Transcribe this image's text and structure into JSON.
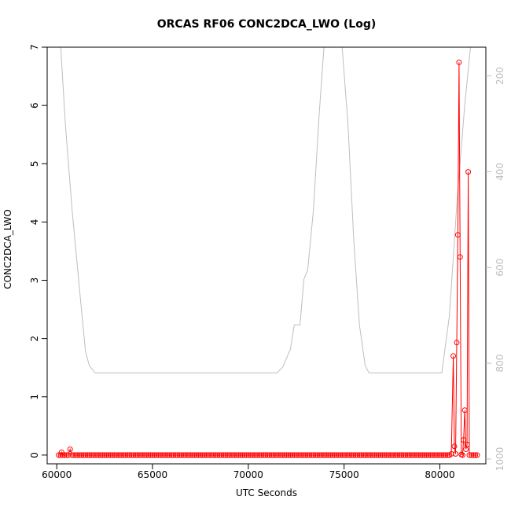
{
  "chart_data": {
    "type": "line",
    "title": "ORCAS RF06 CONC2DCA_LWO (Log)",
    "xlabel": "UTC Seconds",
    "ylabel": "CONC2DCA_LWO",
    "xlim": [
      59500,
      82400
    ],
    "ylim": [
      -0.15,
      7.0
    ],
    "x_ticks": [
      60000,
      65000,
      70000,
      75000,
      80000
    ],
    "y_ticks": [
      0,
      1,
      2,
      3,
      4,
      5,
      6,
      7
    ],
    "y2_ticks": [
      200,
      400,
      600,
      800,
      1000
    ],
    "y2lim": [
      140,
      1010
    ],
    "y2_reversed": true,
    "grid": false,
    "colors": {
      "series": "#ff0000",
      "secondary": "#bebebe"
    },
    "series": [
      {
        "axis": "left",
        "style": "line+points",
        "baseline_range": [
          60100,
          80500
        ],
        "baseline_step": 100,
        "baseline_value": 0.0,
        "points": [
          [
            60250,
            0.05
          ],
          [
            60700,
            0.1
          ],
          [
            80600,
            0.02
          ],
          [
            80700,
            1.7
          ],
          [
            80760,
            0.15
          ],
          [
            80820,
            0.02
          ],
          [
            80880,
            1.93
          ],
          [
            80940,
            3.78
          ],
          [
            81000,
            6.74
          ],
          [
            81060,
            3.4
          ],
          [
            81120,
            0.01
          ],
          [
            81180,
            0.0
          ],
          [
            81240,
            0.26
          ],
          [
            81300,
            0.77
          ],
          [
            81360,
            0.1
          ],
          [
            81420,
            0.18
          ],
          [
            81480,
            4.86
          ],
          [
            81540,
            0.0
          ],
          [
            81650,
            0.0
          ],
          [
            81750,
            0.0
          ],
          [
            81850,
            0.0
          ],
          [
            81950,
            0.0
          ]
        ]
      },
      {
        "axis": "right",
        "style": "line",
        "x": [
          60150,
          60450,
          60800,
          61200,
          61500,
          61700,
          62000,
          65000,
          70000,
          71500,
          71800,
          72200,
          72400,
          72700,
          72900,
          73100,
          73400,
          73700,
          73950,
          74900,
          75200,
          75500,
          75800,
          76100,
          76300,
          79000,
          80100,
          80500,
          80900,
          81300,
          81700
        ],
        "y": [
          100,
          300,
          480,
          650,
          775,
          805,
          820,
          820,
          820,
          820,
          808,
          770,
          720,
          720,
          625,
          605,
          480,
          280,
          140,
          140,
          300,
          540,
          720,
          805,
          820,
          820,
          820,
          700,
          460,
          260,
          100
        ]
      }
    ]
  }
}
